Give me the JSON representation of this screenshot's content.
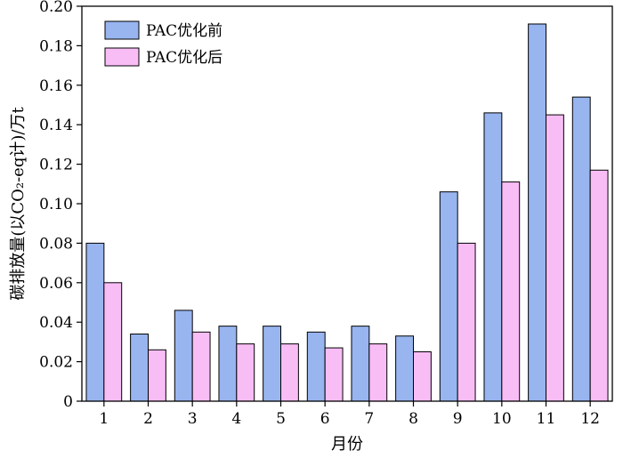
{
  "chart_data": {
    "type": "bar",
    "categories": [
      "1",
      "2",
      "3",
      "4",
      "5",
      "6",
      "7",
      "8",
      "9",
      "10",
      "11",
      "12"
    ],
    "series": [
      {
        "name": "PAC优化前",
        "color": "#98B5F0",
        "values": [
          0.08,
          0.034,
          0.046,
          0.038,
          0.038,
          0.035,
          0.038,
          0.033,
          0.106,
          0.146,
          0.191,
          0.154
        ]
      },
      {
        "name": "PAC优化后",
        "color": "#F9BDF6",
        "values": [
          0.06,
          0.026,
          0.035,
          0.029,
          0.029,
          0.027,
          0.029,
          0.025,
          0.08,
          0.111,
          0.145,
          0.117
        ]
      }
    ],
    "xlabel": "月份",
    "ylabel": "碳排放量(以CO₂-eq计)/万t",
    "ylim": [
      0,
      0.2
    ],
    "yticks": [
      "0",
      "0.02",
      "0.04",
      "0.06",
      "0.08",
      "0.10",
      "0.12",
      "0.14",
      "0.16",
      "0.18",
      "0.20"
    ],
    "legend": "top-left",
    "grid": false
  }
}
